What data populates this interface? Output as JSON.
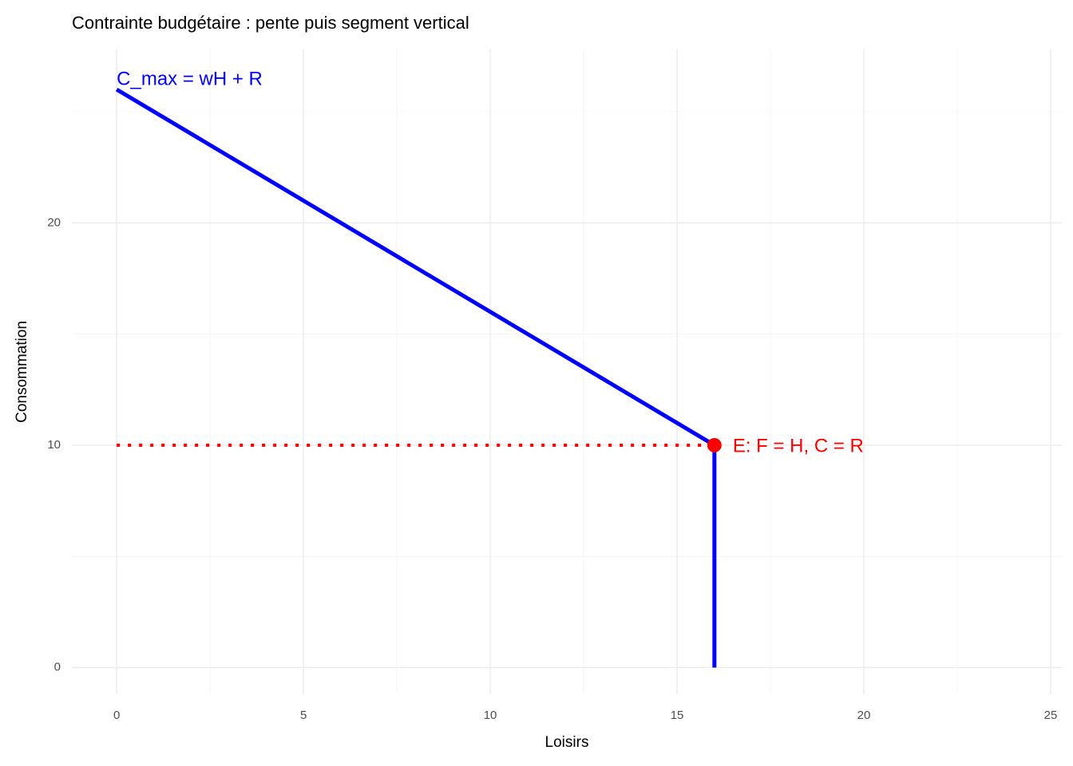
{
  "chart_data": {
    "type": "line",
    "title": "Contrainte budgétaire : pente puis segment vertical",
    "x_label": "Loisirs",
    "y_label": "Consommation",
    "xlim": [
      -1.2,
      25.3
    ],
    "ylim": [
      -1.2,
      27.8
    ],
    "xticks": [
      0,
      5,
      10,
      15,
      20,
      25
    ],
    "yticks": [
      0,
      10,
      20
    ],
    "x_minor_ticks": [
      2.5,
      7.5,
      12.5,
      17.5,
      22.5
    ],
    "y_minor_ticks": [
      5,
      15,
      25
    ],
    "grid": true,
    "series": [
      {
        "x": [
          0,
          16,
          16
        ],
        "values": [
          26,
          10,
          0
        ],
        "color": "#0000ff",
        "style": "solid"
      },
      {
        "x": [
          0,
          16
        ],
        "values": [
          10,
          10
        ],
        "color": "#ff0000",
        "style": "dotted"
      }
    ],
    "points": [
      {
        "x": 16,
        "y": 10,
        "color": "#ff0000"
      }
    ],
    "annotations": [
      {
        "text": "C_max = wH + R",
        "x": 0,
        "y": 26,
        "color": "#0000ff"
      },
      {
        "text": "E: F = H, C = R",
        "x": 16,
        "y": 10,
        "color": "#ff0000"
      }
    ]
  }
}
